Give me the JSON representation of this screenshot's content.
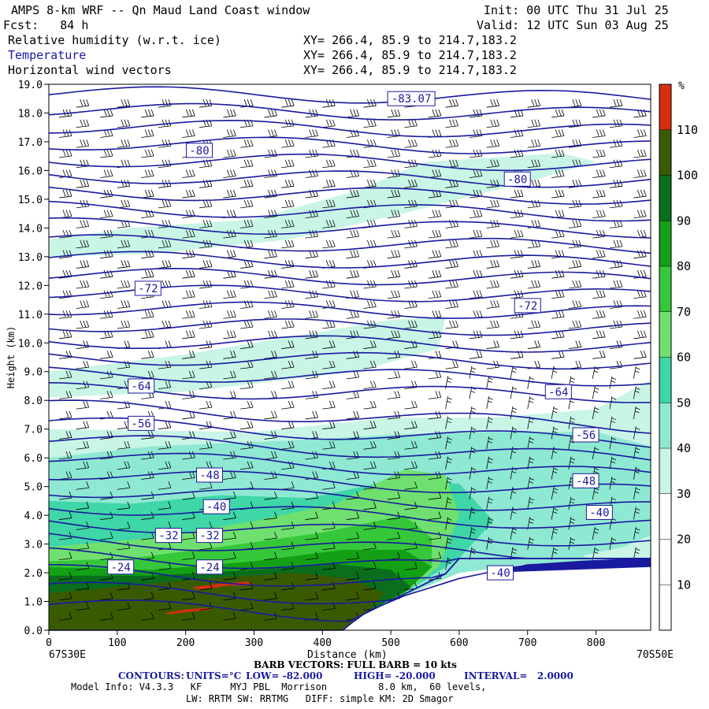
{
  "header": {
    "title": "AMPS 8-km WRF -- Qn Maud Land Coast window",
    "fcst": "Fcst:   84 h",
    "init": "Init: 00 UTC Thu 31 Jul 25",
    "valid": "Valid: 12 UTC Sun 03 Aug 25",
    "field1": "Relative humidity (w.r.t. ice)",
    "field2": "Temperature",
    "field3": "Horizontal wind vectors",
    "xy1": "XY= 266.4, 85.9 to 214.7,183.2",
    "xy2": "XY= 266.4, 85.9 to 214.7,183.2",
    "xy3": "XY= 266.4, 85.9 to 214.7,183.2"
  },
  "footer": {
    "left_coord": "67S30E",
    "right_coord": "70S50E",
    "barb": "BARB VECTORS: FULL BARB = 10 kts",
    "contours_label": "CONTOURS:",
    "units": "UNITS=°C",
    "low": "LOW= -82.000",
    "high": "HIGH= -20.000",
    "interval": "INTERVAL=   2.0000",
    "model1": "Model Info: V4.3.3   KF     MYJ PBL  Morrison         8.0 km,  60 levels,",
    "model2": "LW: RRTM SW: RRTMG   DIFF: simple KM: 2D Smagor"
  },
  "colors": {
    "temperature_contour": "#1a1a9e",
    "rh_30_40": "#c8f5e6",
    "rh_40_50": "#8ee8d2",
    "rh_50_60": "#3fd6a8",
    "rh_60_70": "#6fe06f",
    "rh_70_80": "#36c83a",
    "rh_80_90": "#14a014",
    "rh_90_100": "#0a6e1c",
    "rh_100_110": "#3a5a00",
    "rh_gt_110": "#d43010"
  },
  "chart_data": {
    "type": "heatmap",
    "xlabel": "Distance (km)",
    "ylabel": "Height (km)",
    "xlim": [
      0,
      880
    ],
    "ylim": [
      0.0,
      19.0
    ],
    "x_ticks": [
      0,
      100,
      200,
      300,
      400,
      500,
      600,
      700,
      800
    ],
    "y_ticks": [
      "0.0",
      "1.0",
      "2.0",
      "3.0",
      "4.0",
      "5.0",
      "6.0",
      "7.0",
      "8.0",
      "9.0",
      "10.0",
      "11.0",
      "12.0",
      "13.0",
      "14.0",
      "15.0",
      "16.0",
      "17.0",
      "18.0",
      "19.0"
    ],
    "colorbar": {
      "unit": "%",
      "ticks": [
        10,
        20,
        30,
        40,
        50,
        60,
        70,
        80,
        90,
        100,
        110
      ],
      "colors": [
        "#ffffff",
        "#ffffff",
        "#ffffff",
        "#c8f5e6",
        "#8ee8d2",
        "#3fd6a8",
        "#6fe06f",
        "#36c83a",
        "#14a014",
        "#0a6e1c",
        "#3a5a00",
        "#d43010"
      ]
    },
    "temperature_contours": {
      "units": "°C",
      "low": -82,
      "high": -20,
      "interval": 2,
      "labels": [
        {
          "text": "-83.07",
          "x": 530,
          "y": 18.5
        },
        {
          "text": "-80",
          "x": 220,
          "y": 16.7
        },
        {
          "text": "-80",
          "x": 685,
          "y": 15.7
        },
        {
          "text": "-72",
          "x": 145,
          "y": 11.9
        },
        {
          "text": "-72",
          "x": 700,
          "y": 11.3
        },
        {
          "text": "-64",
          "x": 135,
          "y": 8.5
        },
        {
          "text": "-64",
          "x": 745,
          "y": 8.3
        },
        {
          "text": "-56",
          "x": 135,
          "y": 7.2
        },
        {
          "text": "-56",
          "x": 785,
          "y": 6.8
        },
        {
          "text": "-48",
          "x": 235,
          "y": 5.4
        },
        {
          "text": "-48",
          "x": 785,
          "y": 5.2
        },
        {
          "text": "-40",
          "x": 245,
          "y": 4.3
        },
        {
          "text": "-40",
          "x": 805,
          "y": 4.1
        },
        {
          "text": "-32",
          "x": 175,
          "y": 3.3
        },
        {
          "text": "-32",
          "x": 235,
          "y": 3.3
        },
        {
          "text": "-24",
          "x": 105,
          "y": 2.2
        },
        {
          "text": "-24",
          "x": 235,
          "y": 2.2
        },
        {
          "text": "-40",
          "x": 660,
          "y": 2.0
        }
      ]
    },
    "terrain_profile": [
      [
        0,
        0
      ],
      [
        430,
        0
      ],
      [
        450,
        0.4
      ],
      [
        470,
        0.7
      ],
      [
        490,
        0.9
      ],
      [
        520,
        1.2
      ],
      [
        560,
        1.5
      ],
      [
        600,
        1.8
      ],
      [
        640,
        2.0
      ],
      [
        680,
        2.2
      ],
      [
        720,
        2.3
      ],
      [
        780,
        2.4
      ],
      [
        880,
        2.5
      ]
    ]
  }
}
